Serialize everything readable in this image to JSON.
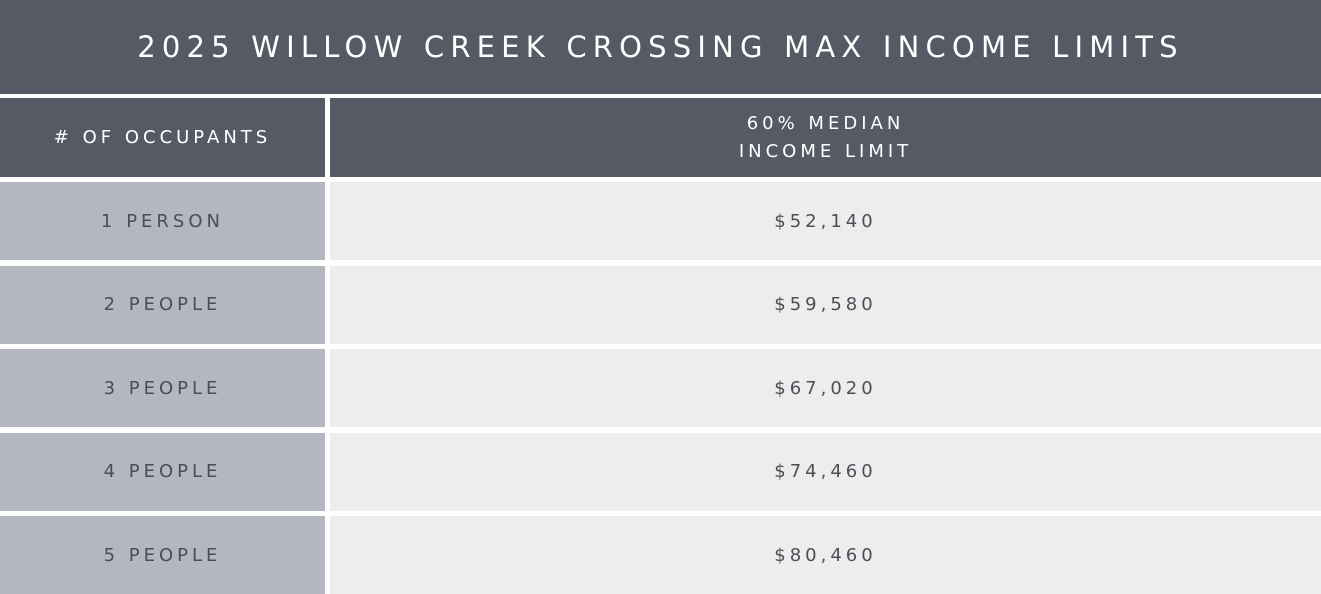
{
  "table": {
    "title": "2025 WILLOW CREEK CROSSING MAX INCOME LIMITS",
    "columns": [
      "# OF OCCUPANTS",
      "60% MEDIAN INCOME LIMIT"
    ],
    "rows": [
      [
        "1 PERSON",
        "$52,140"
      ],
      [
        "2 PEOPLE",
        "$59,580"
      ],
      [
        "3 PEOPLE",
        "$67,020"
      ],
      [
        "4 PEOPLE",
        "$74,460"
      ],
      [
        "5 PEOPLE",
        "$80,460"
      ]
    ]
  }
}
